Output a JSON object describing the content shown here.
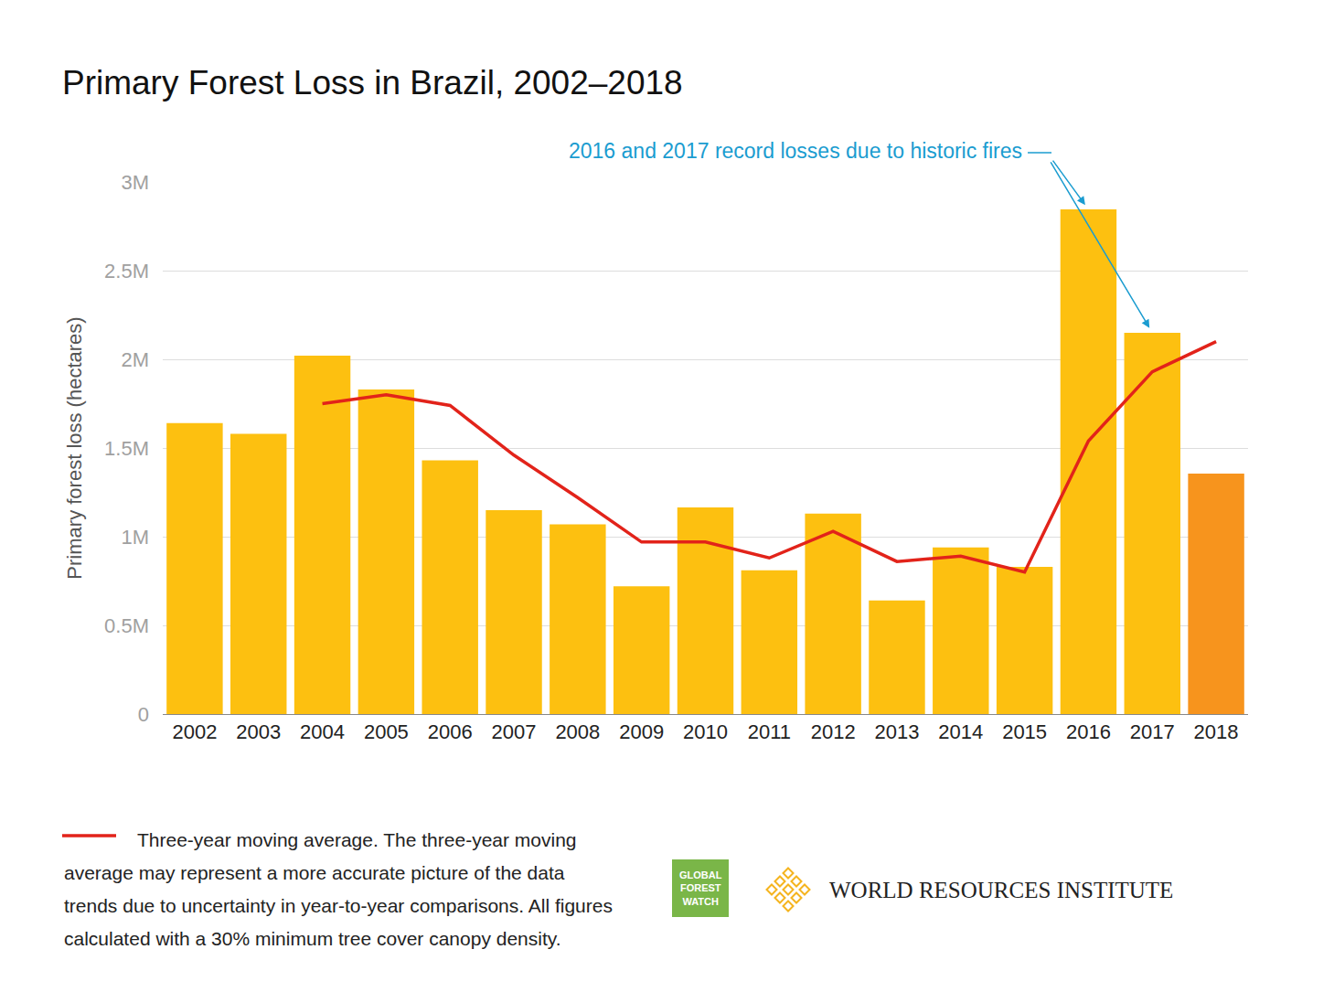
{
  "chart_data": {
    "type": "bar",
    "title": "Primary Forest Loss in Brazil, 2002–2018",
    "y_label": "Primary forest loss (hectares)",
    "categories": [
      "2002",
      "2003",
      "2004",
      "2005",
      "2006",
      "2007",
      "2008",
      "2009",
      "2010",
      "2011",
      "2012",
      "2013",
      "2014",
      "2015",
      "2016",
      "2017",
      "2018"
    ],
    "series": [
      {
        "type": "bar",
        "colors": [
          "#fdc010",
          "#fdc010",
          "#fdc010",
          "#fdc010",
          "#fdc010",
          "#fdc010",
          "#fdc010",
          "#fdc010",
          "#fdc010",
          "#fdc010",
          "#fdc010",
          "#fdc010",
          "#fdc010",
          "#fdc010",
          "#fdc010",
          "#fdc010",
          "#f7941d"
        ],
        "values": [
          1640000,
          1580000,
          2020000,
          1830000,
          1430000,
          1150000,
          1070000,
          720000,
          1165000,
          810000,
          1130000,
          640000,
          940000,
          830000,
          2845000,
          2150000,
          1356000
        ]
      },
      {
        "type": "line",
        "color": "#e2231a",
        "values": [
          null,
          null,
          1750000,
          1800000,
          1740000,
          1460000,
          1220000,
          970000,
          970000,
          880000,
          1030000,
          860000,
          890000,
          800000,
          1540000,
          1930000,
          2100000
        ]
      }
    ],
    "ylim": [
      0,
      3000000
    ],
    "yticks": [
      0,
      {
        "value": 500000,
        "label": "0.5M"
      },
      {
        "value": 1000000,
        "label": "1M"
      },
      {
        "value": 1500000,
        "label": "1.5M"
      },
      {
        "value": 2000000,
        "label": "2M"
      },
      {
        "value": 2500000,
        "label": "2.5M"
      },
      {
        "value": 3000000,
        "label": "3M"
      }
    ],
    "grid": true,
    "annotations": [
      {
        "text": "2016 and 2017 record losses due to historic fires",
        "targets": [
          "2016",
          "2017"
        ],
        "color": "#1a9cd0"
      }
    ],
    "footnote": [
      "Three-year moving average. The three-year moving",
      "average may represent a more accurate picture of the data",
      "trends due to uncertainty in year-to-year comparisons. All figures",
      "calculated with a 30% minimum tree cover canopy density."
    ],
    "logos": [
      {
        "lines": [
          "GLOBAL",
          "FOREST",
          "WATCH"
        ],
        "color": "#7ab648"
      },
      {
        "lines": [
          "WORLD RESOURCES INSTITUTE"
        ],
        "color": "#f5b41e"
      }
    ]
  }
}
